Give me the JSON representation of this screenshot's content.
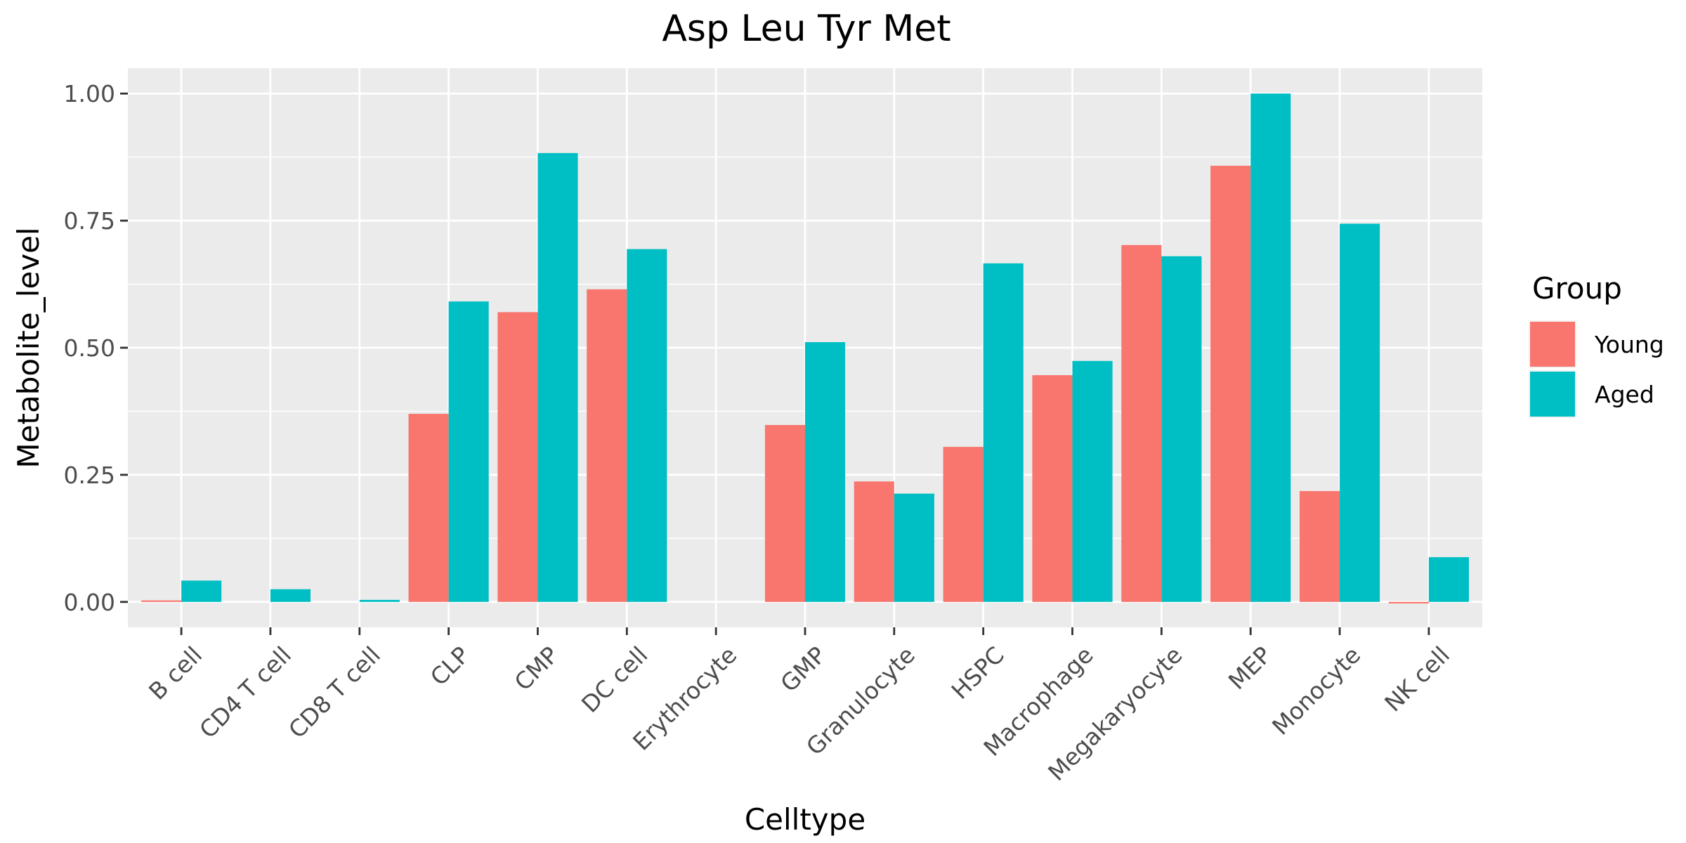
{
  "chart_data": {
    "type": "bar",
    "title": "Asp Leu Tyr Met",
    "xlabel": "Celltype",
    "ylabel": "Metabolite_level",
    "ylim": [
      -0.05,
      1.05
    ],
    "yticks": [
      0.0,
      0.25,
      0.5,
      0.75,
      1.0
    ],
    "ytick_labels": [
      "0.00",
      "0.25",
      "0.50",
      "0.75",
      "1.00"
    ],
    "grid": true,
    "legend": {
      "title": "Group",
      "position": "right"
    },
    "categories": [
      "B cell",
      "CD4 T cell",
      "CD8 T cell",
      "CLP",
      "CMP",
      "DC cell",
      "Erythrocyte",
      "GMP",
      "Granulocyte",
      "HSPC",
      "Macrophage",
      "Megakaryocyte",
      "MEP",
      "Monocyte",
      "NK cell"
    ],
    "series": [
      {
        "name": "Young",
        "color": "#F8766D",
        "values": [
          0.003,
          0.0,
          0.0,
          0.37,
          0.57,
          0.615,
          0.0,
          0.348,
          0.237,
          0.305,
          0.446,
          0.702,
          0.858,
          0.218,
          -0.003
        ]
      },
      {
        "name": "Aged",
        "color": "#00BFC4",
        "values": [
          0.042,
          0.025,
          0.004,
          0.591,
          0.883,
          0.694,
          0.0,
          0.511,
          0.213,
          0.666,
          0.474,
          0.68,
          1.0,
          0.744,
          0.088
        ]
      }
    ]
  }
}
